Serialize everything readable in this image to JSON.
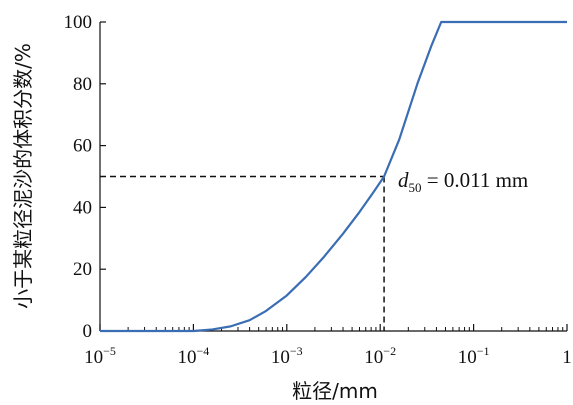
{
  "chart_data": {
    "type": "line",
    "title": "",
    "xlabel": "粒径/mm",
    "ylabel": "小于某粒径泥沙的体积分数/%",
    "x_scale": "log",
    "xlim": [
      1e-05,
      1
    ],
    "ylim": [
      0,
      100
    ],
    "grid": false,
    "legend": "none",
    "x_ticks": [
      {
        "value": 1e-05,
        "base": "10",
        "exp": "−5"
      },
      {
        "value": 0.0001,
        "base": "10",
        "exp": "−4"
      },
      {
        "value": 0.001,
        "base": "10",
        "exp": "−3"
      },
      {
        "value": 0.01,
        "base": "10",
        "exp": "−2"
      },
      {
        "value": 0.1,
        "base": "10",
        "exp": "−1"
      },
      {
        "value": 1,
        "base": "1",
        "exp": ""
      }
    ],
    "y_ticks": [
      {
        "value": 0,
        "label": "0"
      },
      {
        "value": 20,
        "label": "20"
      },
      {
        "value": 40,
        "label": "40"
      },
      {
        "value": 60,
        "label": "60"
      },
      {
        "value": 80,
        "label": "80"
      },
      {
        "value": 100,
        "label": "100"
      }
    ],
    "series": [
      {
        "color": "#3a6db3",
        "points": [
          [
            1e-05,
            0
          ],
          [
            0.0001,
            0
          ],
          [
            0.00016,
            0.5
          ],
          [
            0.00025,
            1.5
          ],
          [
            0.0004,
            3.5
          ],
          [
            0.0006,
            6.5
          ],
          [
            0.001,
            11.5
          ],
          [
            0.0016,
            17.5
          ],
          [
            0.0025,
            24
          ],
          [
            0.004,
            31.5
          ],
          [
            0.006,
            38.5
          ],
          [
            0.0085,
            45
          ],
          [
            0.011,
            50
          ],
          [
            0.016,
            62
          ],
          [
            0.025,
            80
          ],
          [
            0.035,
            92
          ],
          [
            0.045,
            100
          ],
          [
            1,
            100
          ]
        ]
      }
    ],
    "reference": {
      "x": 0.011,
      "y": 50,
      "label_var": "d",
      "label_sub": "50",
      "label_value": " = 0.011 mm"
    }
  }
}
